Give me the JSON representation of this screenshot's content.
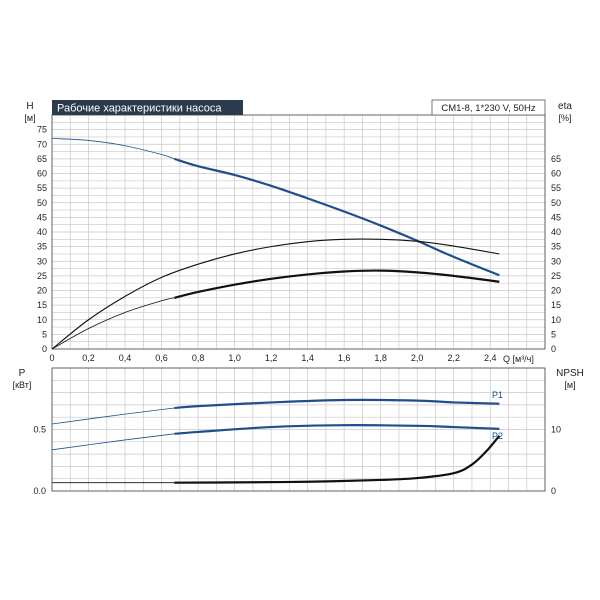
{
  "colors": {
    "blue": "#1f4e8c",
    "black": "#111111",
    "title_bg": "#2b3a4c",
    "title_fg": "#ffffff",
    "grid": "#c8c8c8"
  },
  "chart_data": [
    {
      "type": "line",
      "title": "Рабочие характеристики насоса",
      "model_label": "CM1-8, 1*230 V, 50Hz",
      "ylabel_left": "H",
      "ylabel_left_unit": "[м]",
      "ylabel_right": "eta",
      "ylabel_right_unit": "[%]",
      "xlabel": "Q [м³/ч]",
      "xlim": [
        0,
        2.7
      ],
      "ylim_left": [
        0,
        80
      ],
      "ylim_right": [
        0,
        80
      ],
      "x_ticks": [
        "0",
        "0,2",
        "0,4",
        "0,6",
        "0,8",
        "1,0",
        "1,2",
        "1,4",
        "1,6",
        "1,8",
        "2,0",
        "2,2",
        "2,4"
      ],
      "y_left_ticks": [
        "0",
        "5",
        "10",
        "15",
        "20",
        "25",
        "30",
        "35",
        "40",
        "45",
        "50",
        "55",
        "60",
        "65",
        "70",
        "75"
      ],
      "y_right_ticks": [
        "0",
        "5",
        "10",
        "15",
        "20",
        "25",
        "30",
        "35",
        "40",
        "45",
        "50",
        "55",
        "60",
        "65"
      ],
      "grid": true,
      "series": [
        {
          "axis": "left",
          "color": "#1f4e8c",
          "x": [
            0,
            0.2,
            0.4,
            0.6,
            0.67,
            0.8,
            1.0,
            1.2,
            1.4,
            1.6,
            1.8,
            2.0,
            2.2,
            2.45
          ],
          "y": [
            72,
            71.3,
            69.5,
            66.5,
            65,
            62.5,
            59.5,
            55.8,
            51.5,
            47,
            42.2,
            37,
            31.5,
            25.2
          ],
          "bold_from": 0.67
        },
        {
          "axis": "right",
          "color": "#111111",
          "x": [
            0,
            0.2,
            0.4,
            0.6,
            0.8,
            1.0,
            1.2,
            1.4,
            1.6,
            1.8,
            2.0,
            2.2,
            2.45
          ],
          "y": [
            0,
            10,
            18,
            24.5,
            29,
            32.5,
            35,
            36.7,
            37.5,
            37.5,
            36.8,
            35.2,
            32.5
          ],
          "bold_from": null
        },
        {
          "axis": "left",
          "color": "#111111",
          "x": [
            0,
            0.2,
            0.4,
            0.6,
            0.67,
            0.8,
            1.0,
            1.2,
            1.4,
            1.6,
            1.8,
            2.0,
            2.2,
            2.45
          ],
          "y": [
            0,
            7,
            12.5,
            16.5,
            17.5,
            19.5,
            22,
            24,
            25.5,
            26.5,
            26.8,
            26.2,
            25,
            23
          ],
          "bold_from": 0.67
        }
      ]
    },
    {
      "type": "line",
      "ylabel_left": "P",
      "ylabel_left_unit": "[кВт]",
      "ylabel_right": "NPSH",
      "ylabel_right_unit": "[м]",
      "xlim": [
        0,
        2.7
      ],
      "ylim_left": [
        0,
        1.0
      ],
      "ylim_right": [
        0,
        20
      ],
      "y_left_ticks": [
        "0.0",
        "0.5"
      ],
      "y_right_ticks": [
        "0",
        "10"
      ],
      "grid": true,
      "series": [
        {
          "name": "P1",
          "axis": "left",
          "color": "#1f4e8c",
          "x": [
            0,
            0.4,
            0.67,
            0.8,
            1.2,
            1.6,
            2.0,
            2.2,
            2.45
          ],
          "y": [
            0.545,
            0.625,
            0.675,
            0.69,
            0.72,
            0.74,
            0.735,
            0.72,
            0.71
          ],
          "bold_from": 0.67
        },
        {
          "name": "P2",
          "axis": "left",
          "color": "#1f4e8c",
          "x": [
            0,
            0.4,
            0.67,
            0.8,
            1.2,
            1.6,
            2.0,
            2.2,
            2.45
          ],
          "y": [
            0.335,
            0.415,
            0.465,
            0.48,
            0.52,
            0.535,
            0.53,
            0.52,
            0.505
          ],
          "bold_from": 0.67
        },
        {
          "axis": "right",
          "color": "#111111",
          "x": [
            0,
            0.67,
            1.0,
            1.4,
            1.8,
            2.0,
            2.2,
            2.3,
            2.38,
            2.45
          ],
          "y": [
            1.35,
            1.35,
            1.4,
            1.5,
            1.8,
            2.1,
            2.9,
            4.3,
            6.5,
            9.0
          ],
          "bold_from": 0.67
        }
      ]
    }
  ]
}
